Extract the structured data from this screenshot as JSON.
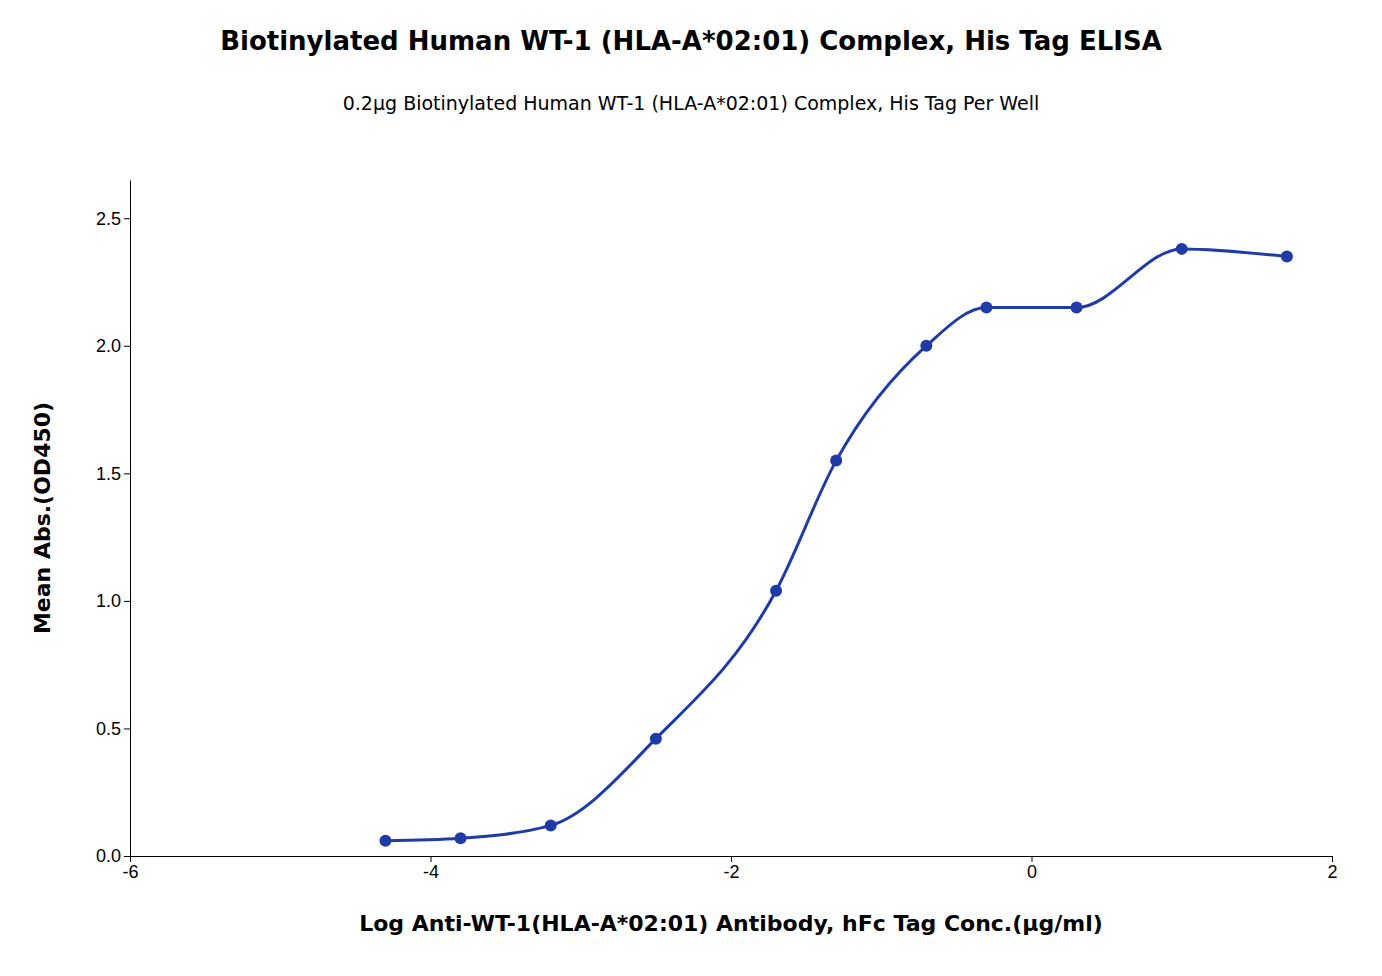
{
  "chart_data": {
    "type": "line",
    "title": "Biotinylated Human WT-1 (HLA-A*02:01) Complex, His Tag ELISA",
    "subtitle": "0.2μg Biotinylated Human WT-1 (HLA-A*02:01) Complex, His Tag Per Well",
    "x_label": "Log Anti-WT-1(HLA-A*02:01) Antibody, hFc Tag Conc.(μg/ml)",
    "y_label": "Mean Abs.(OD450)",
    "x": [
      -4.3,
      -3.8,
      -3.2,
      -2.5,
      -1.7,
      -1.3,
      -0.7,
      -0.3,
      0.3,
      1.0,
      1.7
    ],
    "series": [
      {
        "color": "#1f3ba6",
        "marker": "circle",
        "line_style": "solid",
        "values": [
          0.06,
          0.07,
          0.12,
          0.46,
          1.04,
          1.55,
          2.0,
          2.15,
          2.15,
          2.38,
          2.35
        ]
      }
    ],
    "xlim": [
      -6,
      2
    ],
    "ylim": [
      0,
      2.65
    ],
    "xticks": [
      -6,
      -4,
      -2,
      0,
      2
    ],
    "yticks": [
      {
        "value": 0,
        "label": "0.0"
      },
      0.5,
      {
        "value": 1,
        "label": "1.0"
      },
      1.5,
      {
        "value": 2,
        "label": "2.0"
      },
      2.5
    ],
    "grid": false
  }
}
